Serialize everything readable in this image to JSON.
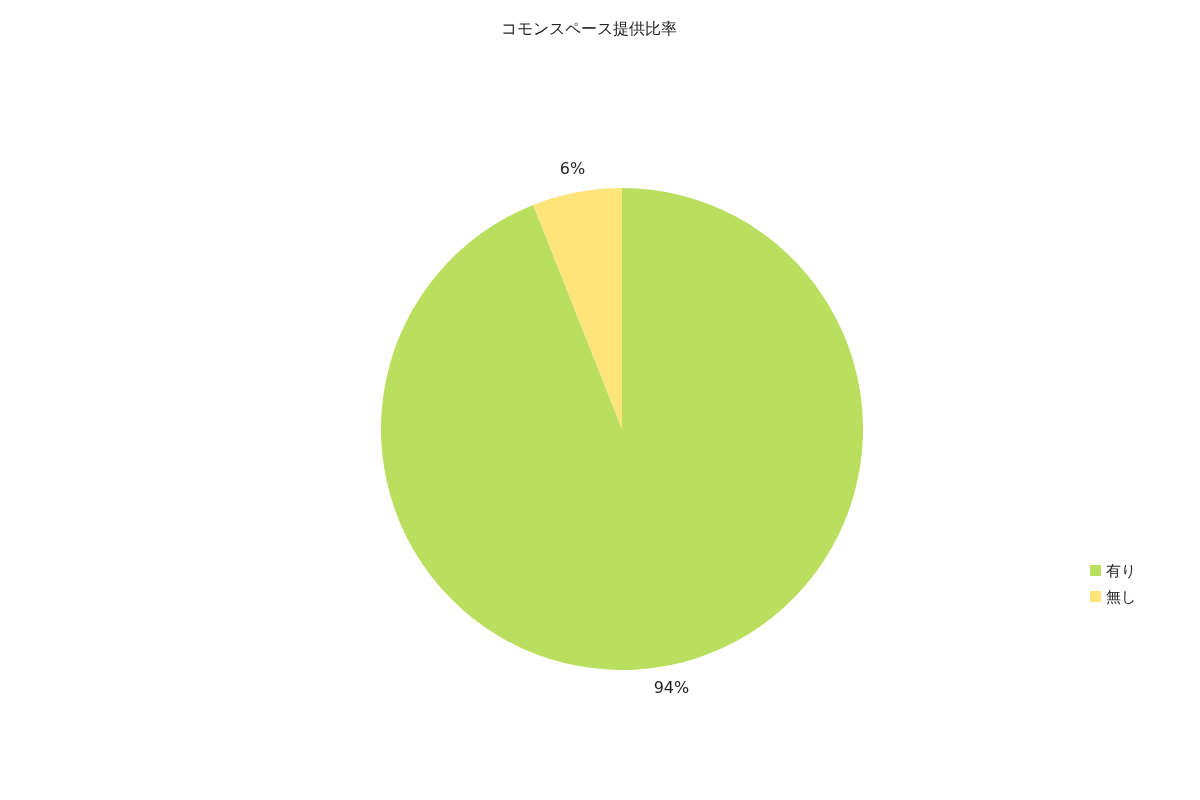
{
  "chart_data": {
    "type": "pie",
    "title": "コモンスペース提供比率",
    "categories": [
      "有り",
      "無し"
    ],
    "values": [
      94,
      6
    ],
    "colors": [
      "#bade5e",
      "#ffe47a"
    ],
    "value_labels": [
      "94%",
      "6%"
    ],
    "legend": "right"
  }
}
